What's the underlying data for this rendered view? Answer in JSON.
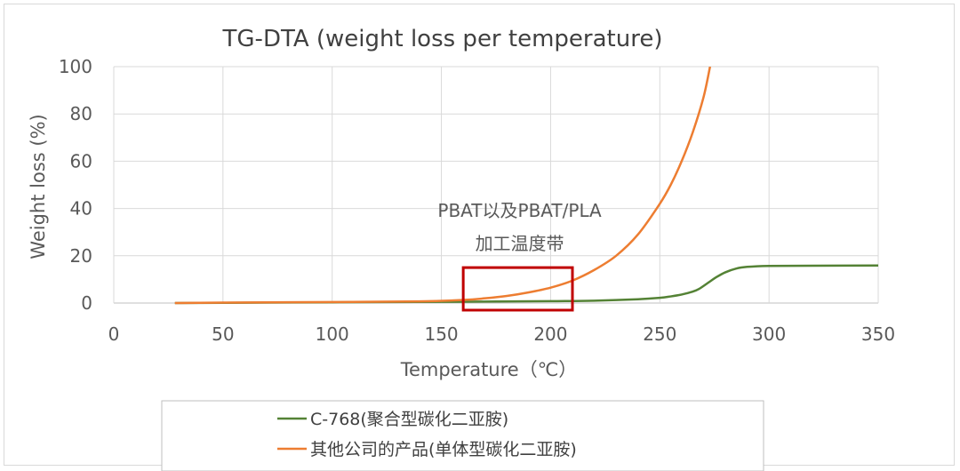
{
  "chart_data": {
    "type": "line",
    "title": "TG-DTA (weight loss per temperature)",
    "xlabel": "Temperature（℃）",
    "ylabel": "Weight loss (%)",
    "xlim": [
      0,
      350
    ],
    "ylim": [
      0,
      100
    ],
    "xticks": [
      0,
      50,
      100,
      150,
      200,
      250,
      300,
      350
    ],
    "yticks": [
      0,
      20,
      40,
      60,
      80,
      100
    ],
    "grid": true,
    "legend_position": "bottom",
    "series": [
      {
        "name": "C-768(聚合型碳化二亚胺)",
        "color": "#548235",
        "x": [
          28,
          50,
          100,
          150,
          200,
          220,
          240,
          250,
          255,
          260,
          265,
          268,
          272,
          276,
          280,
          285,
          290,
          300,
          320,
          350
        ],
        "y": [
          0,
          0.1,
          0.3,
          0.5,
          0.8,
          1.0,
          1.6,
          2.2,
          2.8,
          3.6,
          4.8,
          6.0,
          8.5,
          11,
          13,
          14.6,
          15.3,
          15.7,
          15.8,
          15.9
        ]
      },
      {
        "name": "其他公司的产品(单体型碳化二亚胺)",
        "color": "#ED7D31",
        "x": [
          28,
          50,
          100,
          140,
          160,
          170,
          180,
          190,
          200,
          210,
          220,
          230,
          240,
          250,
          255,
          260,
          265,
          270,
          273
        ],
        "y": [
          0,
          0.2,
          0.4,
          0.7,
          1.3,
          2.0,
          3.0,
          4.5,
          6.5,
          9.5,
          14,
          20,
          29,
          42,
          50,
          60,
          72,
          87,
          100
        ]
      }
    ],
    "annotations": [
      {
        "lines": [
          "PBAT以及PBAT/PLA",
          "加工温度带"
        ],
        "box_x_range": [
          160,
          210
        ],
        "box_y_range": [
          -3,
          15
        ],
        "box_color": "#C00000"
      }
    ]
  }
}
